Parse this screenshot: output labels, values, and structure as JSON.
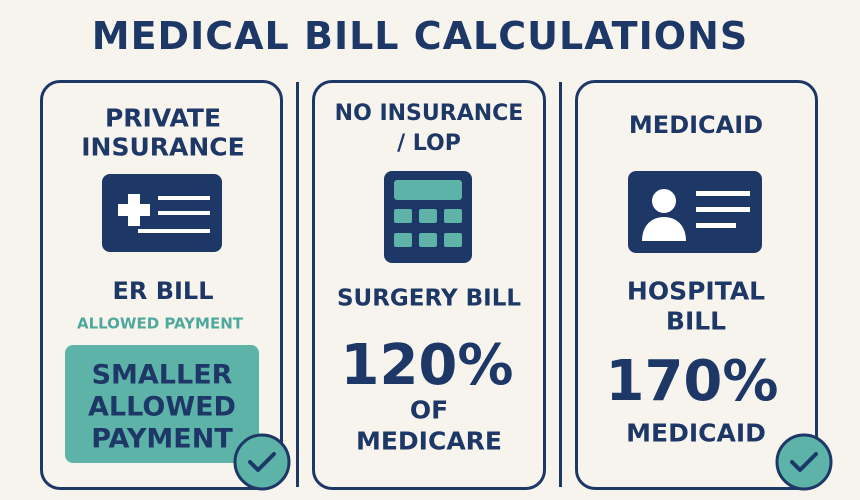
{
  "title": "MEDICAL BILL CALCULATIONS",
  "cards": [
    {
      "heading": [
        "PRIVATE",
        "INSURANCE"
      ],
      "bill": "ER BILL",
      "sub_label": "ALLOWED PAYMENT",
      "result": [
        "SMALLER",
        "ALLOWED",
        "PAYMENT"
      ]
    },
    {
      "heading": [
        "NO INSURANCE",
        "/ LOP"
      ],
      "bill": "SURGERY BILL",
      "rate": "120%",
      "basis": [
        "OF",
        "MEDICARE"
      ]
    },
    {
      "heading": [
        "MEDICAID"
      ],
      "bill": [
        "HOSPITAL",
        "BILL"
      ],
      "rate": "170%",
      "basis": [
        "MEDICAID"
      ]
    }
  ]
}
